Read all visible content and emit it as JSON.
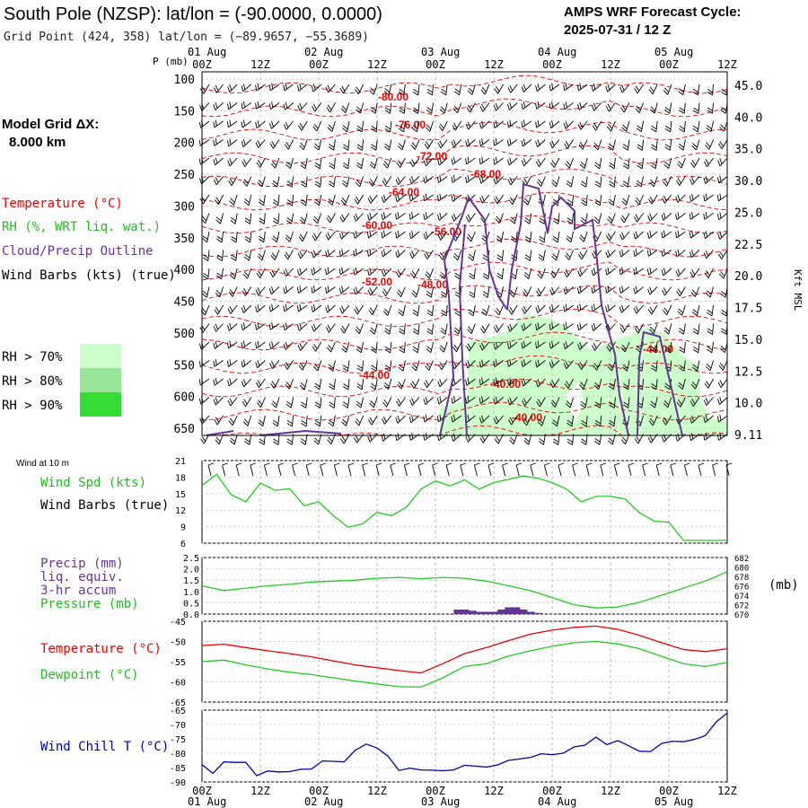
{
  "header": {
    "title": "South Pole (NZSP):  lat/lon = (-90.0000, 0.0000)",
    "grid_point": "Grid Point (424, 358) lat/lon = (−89.9657, −55.3689)",
    "cycle_title": "AMPS WRF Forecast Cycle:",
    "cycle_value": "2025-07-31 / 12  Z",
    "model_grid_label": "Model Grid ΔX:",
    "model_grid_value": "8.000 km"
  },
  "time_axis": {
    "top_dates": [
      "01 Aug",
      "02 Aug",
      "03 Aug",
      "04 Aug",
      "05 Aug"
    ],
    "hour_labels": [
      "00Z",
      "12Z",
      "00Z",
      "12Z",
      "00Z",
      "12Z",
      "00Z",
      "12Z",
      "00Z",
      "12Z"
    ],
    "bottom_dates": [
      "01 Aug",
      "02 Aug",
      "03 Aug",
      "04 Aug",
      "05 Aug"
    ]
  },
  "legend": {
    "temperature": "Temperature (°C)",
    "rh": "RH (%, WRT liq. wat.)",
    "cloud": "Cloud/Precip Outline",
    "wind": "Wind Barbs (kts) (true)",
    "rh70": "RH > 70%",
    "rh80": "RH > 80%",
    "rh90": "RH > 90%",
    "rh_colors": [
      "#ccffcc",
      "#99e699",
      "#33dd33"
    ],
    "p_unit": "P (mb)",
    "kft_label": "Kft MSL"
  },
  "colors": {
    "temperature": "#ee0000",
    "dewpoint": "#22cc22",
    "cloud": "#663399",
    "windchill": "#0000aa",
    "wind": "#000000"
  },
  "chart_data": [
    {
      "type": "line",
      "name": "cross-section",
      "p_ticks": [
        100,
        150,
        200,
        250,
        300,
        350,
        400,
        450,
        500,
        550,
        600,
        650
      ],
      "kft_ticks": [
        "45.0",
        "40.0",
        "35.0",
        "30.0",
        "25.0",
        "22.5",
        "20.0",
        "17.5",
        "15.0",
        "12.5",
        "10.0",
        "9.11"
      ],
      "temperature_labels": [
        "-80.00",
        "-76.00",
        "-72.00",
        "-68.00",
        "-64.00",
        "-60.00",
        "-56.00",
        "-52.00",
        "-48.00",
        "-44.00",
        "-40.00",
        "-44.00",
        "-40.00"
      ]
    },
    {
      "type": "line",
      "name": "wind-10m",
      "title": "Wind at 10 m",
      "label_spd": "Wind Spd (kts)",
      "label_barbs": "Wind Barbs (true)",
      "ylim": [
        6,
        21
      ],
      "ticks": [
        "21",
        "18",
        "15",
        "12",
        "9",
        "6"
      ],
      "x": [
        0,
        6,
        12,
        18,
        24,
        30,
        36,
        42,
        48,
        54,
        60,
        66,
        72,
        78,
        84,
        90,
        96,
        102,
        108,
        114,
        120,
        126,
        132,
        138,
        144,
        150,
        156,
        162,
        168,
        174,
        180,
        186,
        192,
        198,
        204,
        210,
        216
      ],
      "values": [
        16.5,
        18.5,
        14.8,
        13.5,
        16.9,
        15.6,
        15.9,
        12.8,
        13.5,
        11.0,
        8.9,
        9.5,
        11.6,
        11.0,
        12.5,
        15.8,
        17.3,
        16.4,
        17.5,
        15.8,
        17.0,
        17.6,
        18.2,
        17.8,
        17.0,
        15.8,
        13.5,
        14.5,
        14.5,
        14.0,
        11.5,
        10.0,
        9.8,
        6.5,
        6.5,
        6.5,
        6.5
      ]
    },
    {
      "type": "line",
      "name": "precip-pressure",
      "label_precip": "Precip (mm)",
      "label_liq": "liq. equiv.",
      "label_accum": "3-hr accum",
      "label_pressure": "Pressure (mb)",
      "unit_right": "(mb)",
      "precip_ticks": [
        "2.5",
        "2.0",
        "1.5",
        "1.0",
        "0.5",
        "0.0"
      ],
      "pressure_ticks": [
        "682",
        "680",
        "678",
        "676",
        "674",
        "672",
        "670"
      ],
      "precip_ylim": [
        0,
        2.5
      ],
      "pressure_ylim": [
        670,
        682
      ],
      "x": [
        0,
        9,
        18,
        27,
        36,
        45,
        54,
        63,
        72,
        81,
        90,
        99,
        108,
        117,
        126,
        135,
        144,
        153,
        162,
        171,
        180,
        189,
        198,
        207,
        216
      ],
      "pressure": [
        676.0,
        675.0,
        675.5,
        676.0,
        676.3,
        676.8,
        677.0,
        677.2,
        677.6,
        677.8,
        677.5,
        677.8,
        677.6,
        677.0,
        676.0,
        675.0,
        673.5,
        672.0,
        671.3,
        671.5,
        672.5,
        674.0,
        675.5,
        677.0,
        679.0
      ],
      "precip_x": [
        105,
        108,
        111,
        114,
        117,
        120,
        123,
        126,
        129,
        132,
        135,
        138
      ],
      "precip": [
        0.2,
        0.2,
        0.15,
        0.1,
        0.1,
        0.1,
        0.2,
        0.3,
        0.3,
        0.2,
        0.1,
        0.05
      ]
    },
    {
      "type": "line",
      "name": "temp-dewpoint",
      "label_temp": "Temperature (°C)",
      "label_dew": "Dewpoint (°C)",
      "ylim": [
        -65,
        -45
      ],
      "ticks": [
        "-45",
        "-50",
        "-55",
        "-60",
        "-65"
      ],
      "x": [
        0,
        9,
        18,
        27,
        36,
        45,
        54,
        63,
        72,
        81,
        90,
        99,
        108,
        117,
        126,
        135,
        144,
        153,
        162,
        171,
        180,
        189,
        198,
        207,
        216
      ],
      "temperature": [
        -51,
        -50.7,
        -51.5,
        -52.3,
        -53,
        -53.8,
        -54.8,
        -55.8,
        -56.5,
        -57.2,
        -57.8,
        -55.5,
        -53,
        -51.5,
        -49.8,
        -48.2,
        -47.2,
        -46.5,
        -46.2,
        -47,
        -48.5,
        -50.3,
        -52,
        -52.5,
        -51.8
      ],
      "dewpoint": [
        -55,
        -54.6,
        -55.8,
        -56.8,
        -57.6,
        -58.2,
        -59,
        -59.8,
        -60.5,
        -61.2,
        -61.3,
        -59,
        -56.2,
        -55.5,
        -53.6,
        -52.3,
        -51.2,
        -50.3,
        -50,
        -50.6,
        -51.8,
        -53.7,
        -55.5,
        -56.2,
        -55.2
      ]
    },
    {
      "type": "line",
      "name": "wind-chill",
      "label": "Wind Chill T (°C)",
      "ylim": [
        -90,
        -65
      ],
      "ticks": [
        "-65",
        "-70",
        "-75",
        "-80",
        "-85",
        "-90"
      ],
      "x": [
        0,
        4.5,
        9,
        13.5,
        18,
        22.5,
        27,
        31.5,
        36,
        40.5,
        45,
        49.5,
        54,
        58.5,
        63,
        67.5,
        72,
        76.5,
        81,
        85.5,
        90,
        94.5,
        99,
        103.5,
        108,
        112.5,
        117,
        121.5,
        126,
        130.5,
        135,
        139.5,
        144,
        148.5,
        153,
        157.5,
        162,
        166.5,
        171,
        175.5,
        180,
        184.5,
        189,
        193.5,
        198,
        202.5,
        207,
        211.5,
        216
      ],
      "values": [
        -84,
        -87,
        -83,
        -83.2,
        -83.2,
        -87.8,
        -86.2,
        -86.5,
        -86.4,
        -85.6,
        -85.5,
        -82.7,
        -82.8,
        -83,
        -79,
        -76.8,
        -78.2,
        -81,
        -86,
        -85.2,
        -85.8,
        -85.9,
        -86.1,
        -85.8,
        -84.2,
        -84.5,
        -84.8,
        -84.1,
        -82.5,
        -82,
        -81.5,
        -80.2,
        -80.5,
        -80,
        -77.8,
        -77.2,
        -74.4,
        -77,
        -75.6,
        -77.4,
        -79.3,
        -79.4,
        -76.6,
        -75.8,
        -76,
        -75.2,
        -73.9,
        -69.1,
        -66
      ]
    }
  ]
}
